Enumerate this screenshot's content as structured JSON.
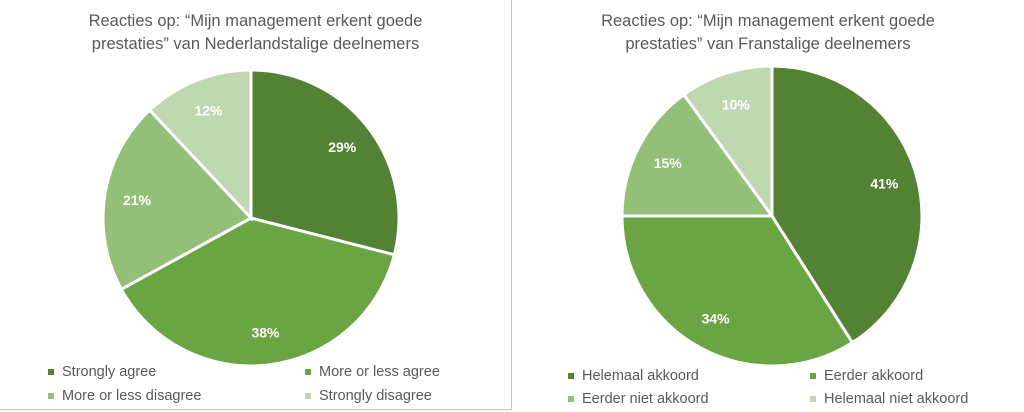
{
  "chart_data": [
    {
      "type": "pie",
      "title_lines": [
        "Reacties op: “Mijn management erkent goede",
        "prestaties” van Nederlandstalige deelnemers"
      ],
      "categories": [
        "Strongly agree",
        "More or less agree",
        "More or less disagree",
        "Strongly disagree"
      ],
      "values": [
        29,
        38,
        21,
        12
      ],
      "labels": [
        "29%",
        "38%",
        "21%",
        "12%"
      ],
      "colors": [
        "#548235",
        "#6aa443",
        "#93bf78",
        "#c0d8b1"
      ],
      "legend_position": "bottom"
    },
    {
      "type": "pie",
      "title_lines": [
        "Reacties op: “Mijn management erkent goede",
        "prestaties” van Franstalige deelnemers"
      ],
      "categories": [
        "Helemaal akkoord",
        "Eerder akkoord",
        "Eerder niet akkoord",
        "Helemaal niet akkoord"
      ],
      "values": [
        41,
        34,
        15,
        10
      ],
      "labels": [
        "41%",
        "34%",
        "15%",
        "10%"
      ],
      "colors": [
        "#548235",
        "#6aa443",
        "#93bf78",
        "#c0d8b1"
      ],
      "legend_position": "bottom"
    }
  ]
}
